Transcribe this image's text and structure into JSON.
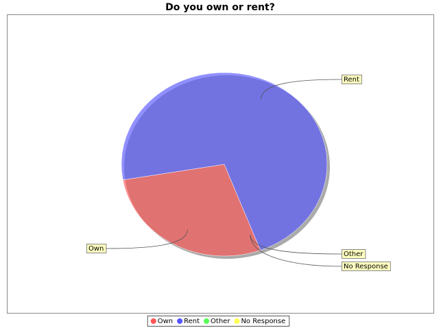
{
  "chart_data": {
    "type": "pie",
    "title": "Do you own or rent?",
    "categories": [
      "Own",
      "Rent",
      "Other",
      "No Response"
    ],
    "values": [
      28,
      72,
      0,
      0
    ],
    "colors": [
      "#ff5555",
      "#5555ff",
      "#55ff55",
      "#ffff55"
    ],
    "legend": "bottom"
  }
}
